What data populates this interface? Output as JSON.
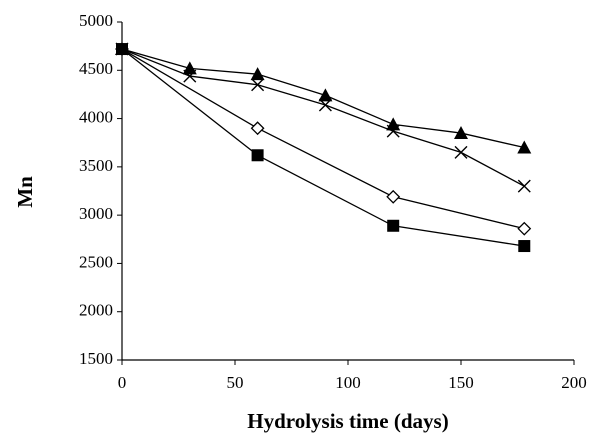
{
  "chart_data": {
    "type": "line",
    "x_label": "Hydrolysis time (days)",
    "y_label": "Mn",
    "xlim": [
      0,
      200
    ],
    "xticks": [
      0,
      50,
      100,
      150,
      200
    ],
    "ylim": [
      1500,
      5000
    ],
    "yticks": [
      1500,
      2000,
      2500,
      3000,
      3500,
      4000,
      4500,
      5000
    ],
    "grid": false,
    "series": [
      {
        "color": "#000000",
        "marker": "triangle",
        "x": [
          0,
          30,
          60,
          90,
          120,
          150,
          178
        ],
        "values": [
          4720,
          4520,
          4460,
          4240,
          3940,
          3850,
          3700
        ]
      },
      {
        "color": "#000000",
        "marker": "cross",
        "x": [
          0,
          30,
          60,
          90,
          120,
          150,
          178
        ],
        "values": [
          4720,
          4440,
          4350,
          4140,
          3870,
          3650,
          3300
        ]
      },
      {
        "color": "#000000",
        "marker": "open-diamond",
        "x": [
          0,
          60,
          120,
          178
        ],
        "values": [
          4720,
          3900,
          3190,
          2860
        ]
      },
      {
        "color": "#000000",
        "marker": "square",
        "x": [
          0,
          60,
          120,
          178
        ],
        "values": [
          4720,
          3620,
          2890,
          2680
        ]
      }
    ]
  }
}
